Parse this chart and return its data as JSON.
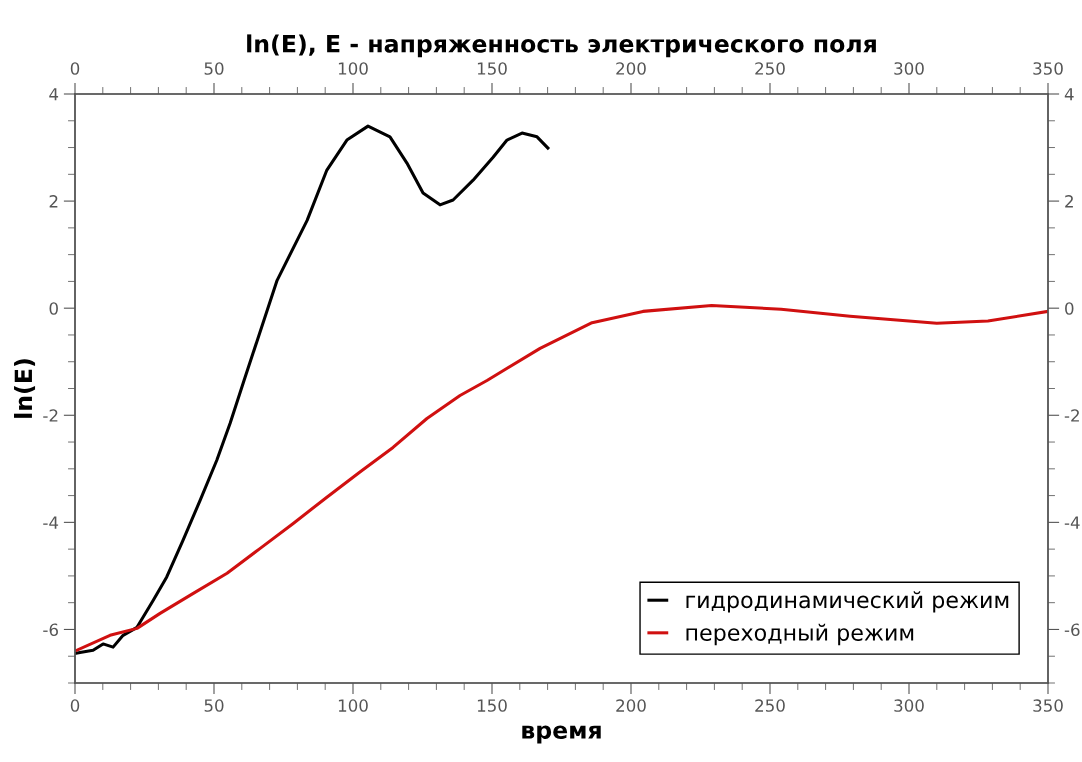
{
  "chart_data": {
    "type": "line",
    "title": "ln(E), E - напряженность электрического поля",
    "xlabel": "время",
    "ylabel": "ln(E)",
    "xlim": [
      0,
      350
    ],
    "xticks": [
      0,
      50,
      100,
      150,
      200,
      250,
      300,
      350
    ],
    "x2lim": [
      0,
      350
    ],
    "x2ticks": [
      0,
      50,
      100,
      150,
      200,
      250,
      300,
      350
    ],
    "ylim": [
      -7,
      4
    ],
    "yticks": [
      -6,
      -4,
      -2,
      0,
      2,
      4
    ],
    "y2lim": [
      -7,
      4
    ],
    "y2ticks": [
      -6,
      -4,
      -2,
      0,
      2,
      4
    ],
    "grid": false,
    "legend": "bottom right",
    "marker": "none",
    "line_style": "solid",
    "series": [
      {
        "name": "гидродинамический режим",
        "color": "#000000",
        "x": [
          0,
          1.8,
          6.5,
          10.1,
          13.7,
          17.3,
          22.3,
          28.1,
          33,
          38.8,
          45,
          51,
          55.8,
          60.8,
          72.7,
          83.5,
          90.6,
          97.8,
          105.4,
          113.3,
          119.4,
          125.2,
          131.3,
          136,
          143.2,
          150.4,
          155.4,
          160.8,
          166.2,
          170.1
        ],
        "values": [
          -6.45,
          -6.43,
          -6.39,
          -6.27,
          -6.33,
          -6.11,
          -5.96,
          -5.46,
          -5.02,
          -4.34,
          -3.59,
          -2.84,
          -2.15,
          -1.35,
          0.52,
          1.64,
          2.58,
          3.14,
          3.4,
          3.2,
          2.71,
          2.15,
          1.93,
          2.02,
          2.39,
          2.82,
          3.14,
          3.27,
          3.2,
          2.99
        ]
      },
      {
        "name": "переходный режим",
        "color": "#d01010",
        "x": [
          0.6,
          12.6,
          22.3,
          30.6,
          42.4,
          54.7,
          66.5,
          78.5,
          90.6,
          102.5,
          114.4,
          126.6,
          138.5,
          148.2,
          167.3,
          186,
          204.3,
          229,
          254,
          278.8,
          310,
          328.4,
          350
        ],
        "values": [
          -6.39,
          -6.11,
          -5.98,
          -5.7,
          -5.33,
          -4.95,
          -4.49,
          -4.02,
          -3.53,
          -3.06,
          -2.6,
          -2.06,
          -1.63,
          -1.35,
          -0.75,
          -0.27,
          -0.06,
          0.05,
          -0.02,
          -0.15,
          -0.28,
          -0.24,
          -0.06
        ]
      }
    ]
  }
}
